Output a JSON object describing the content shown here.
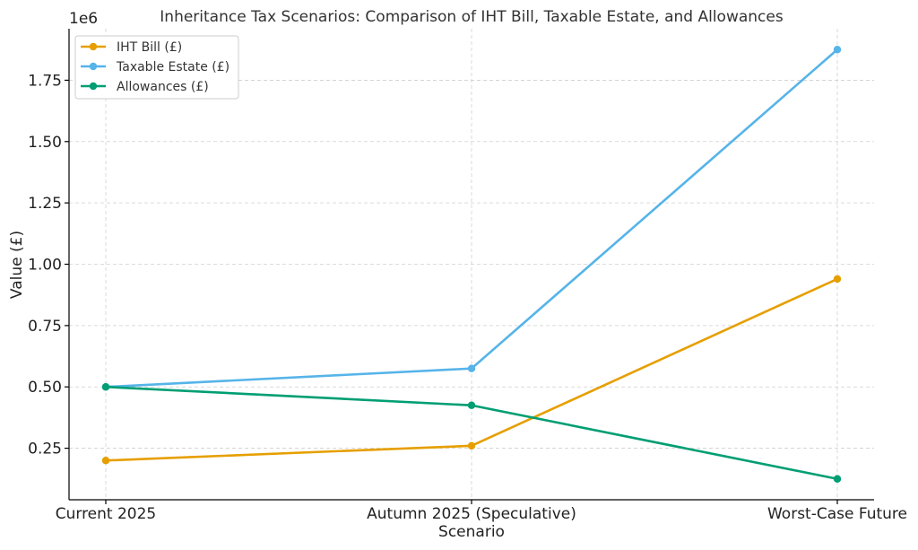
{
  "chart_data": {
    "type": "line",
    "title": "Inheritance Tax Scenarios: Comparison of IHT Bill, Taxable Estate, and Allowances",
    "xlabel": "Scenario",
    "ylabel": "Value (£)",
    "y_offset_label": "1e6",
    "categories": [
      "Current 2025",
      "Autumn 2025 (Speculative)",
      "Worst-Case Future"
    ],
    "ylim": [
      0.04,
      1.96
    ],
    "y_scale_factor": 1000000,
    "y_ticks": [
      0.25,
      0.5,
      0.75,
      1.0,
      1.25,
      1.5,
      1.75
    ],
    "y_tick_labels": [
      "0.25",
      "0.50",
      "0.75",
      "1.00",
      "1.25",
      "1.50",
      "1.75"
    ],
    "grid": true,
    "legend_position": "top-left",
    "series": [
      {
        "name": "IHT Bill (£)",
        "color": "#E69F00",
        "values": [
          200000,
          260000,
          940000
        ]
      },
      {
        "name": "Taxable Estate (£)",
        "color": "#56B4E9",
        "values": [
          500000,
          575000,
          1875000
        ]
      },
      {
        "name": "Allowances (£)",
        "color": "#009E73",
        "values": [
          500000,
          425000,
          125000
        ]
      }
    ]
  }
}
